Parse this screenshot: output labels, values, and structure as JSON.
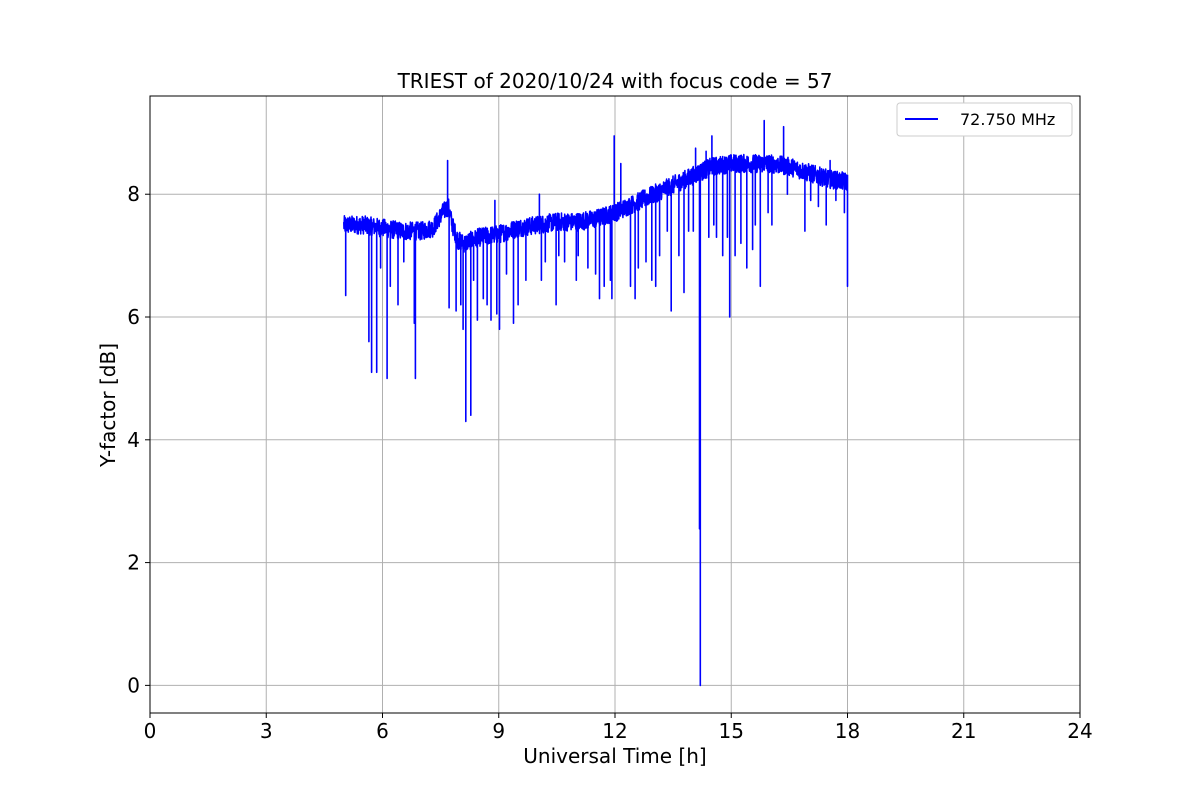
{
  "chart_data": {
    "type": "line",
    "title": "TRIEST of 2020/10/24 with focus code = 57",
    "xlabel": "Universal Time [h]",
    "ylabel": "Y-factor [dB]",
    "xlim": [
      0,
      24
    ],
    "ylim": [
      -0.45,
      9.6
    ],
    "xticks": [
      0,
      3,
      6,
      9,
      12,
      15,
      18,
      21,
      24
    ],
    "yticks": [
      0,
      2,
      4,
      6,
      8
    ],
    "grid": true,
    "legend_position": "top-right",
    "series": [
      {
        "name": "72.750 MHz",
        "color": "#0000ff",
        "baseline": {
          "x": [
            5.0,
            5.5,
            6.0,
            6.5,
            7.0,
            7.3,
            7.55,
            7.7,
            7.8,
            7.95,
            8.1,
            8.5,
            9.0,
            9.5,
            10.0,
            10.5,
            11.0,
            11.5,
            12.0,
            12.5,
            13.0,
            13.5,
            14.0,
            14.5,
            15.0,
            15.5,
            16.0,
            16.5,
            17.0,
            17.5,
            18.0
          ],
          "y": [
            7.5,
            7.5,
            7.45,
            7.4,
            7.4,
            7.45,
            7.7,
            7.8,
            7.5,
            7.25,
            7.2,
            7.3,
            7.35,
            7.45,
            7.5,
            7.55,
            7.55,
            7.6,
            7.7,
            7.85,
            8.0,
            8.15,
            8.3,
            8.45,
            8.5,
            8.5,
            8.5,
            8.45,
            8.35,
            8.25,
            8.2
          ],
          "noise_amplitude": 0.15
        },
        "spikes": [
          {
            "x": 5.05,
            "y": 6.35
          },
          {
            "x": 5.65,
            "y": 5.6
          },
          {
            "x": 5.72,
            "y": 5.1
          },
          {
            "x": 5.85,
            "y": 5.1
          },
          {
            "x": 5.95,
            "y": 6.8
          },
          {
            "x": 6.12,
            "y": 5.0
          },
          {
            "x": 6.2,
            "y": 6.5
          },
          {
            "x": 6.4,
            "y": 6.2
          },
          {
            "x": 6.55,
            "y": 6.9
          },
          {
            "x": 6.82,
            "y": 5.9
          },
          {
            "x": 6.85,
            "y": 5.0
          },
          {
            "x": 7.68,
            "y": 8.55
          },
          {
            "x": 7.72,
            "y": 6.15
          },
          {
            "x": 7.9,
            "y": 6.1
          },
          {
            "x": 8.02,
            "y": 6.2
          },
          {
            "x": 8.08,
            "y": 5.8
          },
          {
            "x": 8.15,
            "y": 4.3
          },
          {
            "x": 8.28,
            "y": 4.4
          },
          {
            "x": 8.35,
            "y": 6.6
          },
          {
            "x": 8.45,
            "y": 5.95
          },
          {
            "x": 8.6,
            "y": 6.3
          },
          {
            "x": 8.7,
            "y": 6.2
          },
          {
            "x": 8.8,
            "y": 5.95
          },
          {
            "x": 8.9,
            "y": 7.9
          },
          {
            "x": 8.95,
            "y": 6.05
          },
          {
            "x": 9.02,
            "y": 5.8
          },
          {
            "x": 9.2,
            "y": 6.7
          },
          {
            "x": 9.38,
            "y": 5.9
          },
          {
            "x": 9.5,
            "y": 6.2
          },
          {
            "x": 9.7,
            "y": 6.6
          },
          {
            "x": 10.05,
            "y": 8.0
          },
          {
            "x": 10.1,
            "y": 6.6
          },
          {
            "x": 10.2,
            "y": 6.9
          },
          {
            "x": 10.48,
            "y": 6.2
          },
          {
            "x": 10.55,
            "y": 7.0
          },
          {
            "x": 10.7,
            "y": 6.9
          },
          {
            "x": 11.0,
            "y": 6.6
          },
          {
            "x": 11.05,
            "y": 7.0
          },
          {
            "x": 11.3,
            "y": 6.8
          },
          {
            "x": 11.5,
            "y": 6.7
          },
          {
            "x": 11.6,
            "y": 6.3
          },
          {
            "x": 11.72,
            "y": 6.5
          },
          {
            "x": 11.88,
            "y": 6.6
          },
          {
            "x": 11.92,
            "y": 6.3
          },
          {
            "x": 11.98,
            "y": 8.95
          },
          {
            "x": 12.15,
            "y": 8.5
          },
          {
            "x": 12.4,
            "y": 6.5
          },
          {
            "x": 12.52,
            "y": 6.3
          },
          {
            "x": 12.6,
            "y": 6.8
          },
          {
            "x": 12.8,
            "y": 6.9
          },
          {
            "x": 12.95,
            "y": 6.6
          },
          {
            "x": 13.05,
            "y": 6.5
          },
          {
            "x": 13.15,
            "y": 7.0
          },
          {
            "x": 13.35,
            "y": 7.4
          },
          {
            "x": 13.45,
            "y": 6.1
          },
          {
            "x": 13.65,
            "y": 7.0
          },
          {
            "x": 13.78,
            "y": 6.4
          },
          {
            "x": 13.9,
            "y": 7.4
          },
          {
            "x": 14.02,
            "y": 7.4
          },
          {
            "x": 14.08,
            "y": 8.75
          },
          {
            "x": 14.18,
            "y": 2.55
          },
          {
            "x": 14.2,
            "y": 0.0
          },
          {
            "x": 14.35,
            "y": 8.7
          },
          {
            "x": 14.42,
            "y": 7.3
          },
          {
            "x": 14.5,
            "y": 8.95
          },
          {
            "x": 14.55,
            "y": 7.5
          },
          {
            "x": 14.62,
            "y": 7.3
          },
          {
            "x": 14.78,
            "y": 7.0
          },
          {
            "x": 14.9,
            "y": 7.3
          },
          {
            "x": 14.96,
            "y": 6.0
          },
          {
            "x": 15.1,
            "y": 7.0
          },
          {
            "x": 15.25,
            "y": 7.2
          },
          {
            "x": 15.4,
            "y": 6.8
          },
          {
            "x": 15.55,
            "y": 7.1
          },
          {
            "x": 15.62,
            "y": 7.5
          },
          {
            "x": 15.75,
            "y": 6.5
          },
          {
            "x": 15.85,
            "y": 9.2
          },
          {
            "x": 15.95,
            "y": 7.7
          },
          {
            "x": 16.05,
            "y": 7.5
          },
          {
            "x": 16.35,
            "y": 9.1
          },
          {
            "x": 16.45,
            "y": 8.0
          },
          {
            "x": 16.9,
            "y": 7.4
          },
          {
            "x": 17.05,
            "y": 7.9
          },
          {
            "x": 17.25,
            "y": 7.8
          },
          {
            "x": 17.45,
            "y": 7.5
          },
          {
            "x": 17.55,
            "y": 8.55
          },
          {
            "x": 17.7,
            "y": 7.9
          },
          {
            "x": 17.92,
            "y": 7.7
          },
          {
            "x": 18.0,
            "y": 6.5
          }
        ]
      }
    ]
  }
}
